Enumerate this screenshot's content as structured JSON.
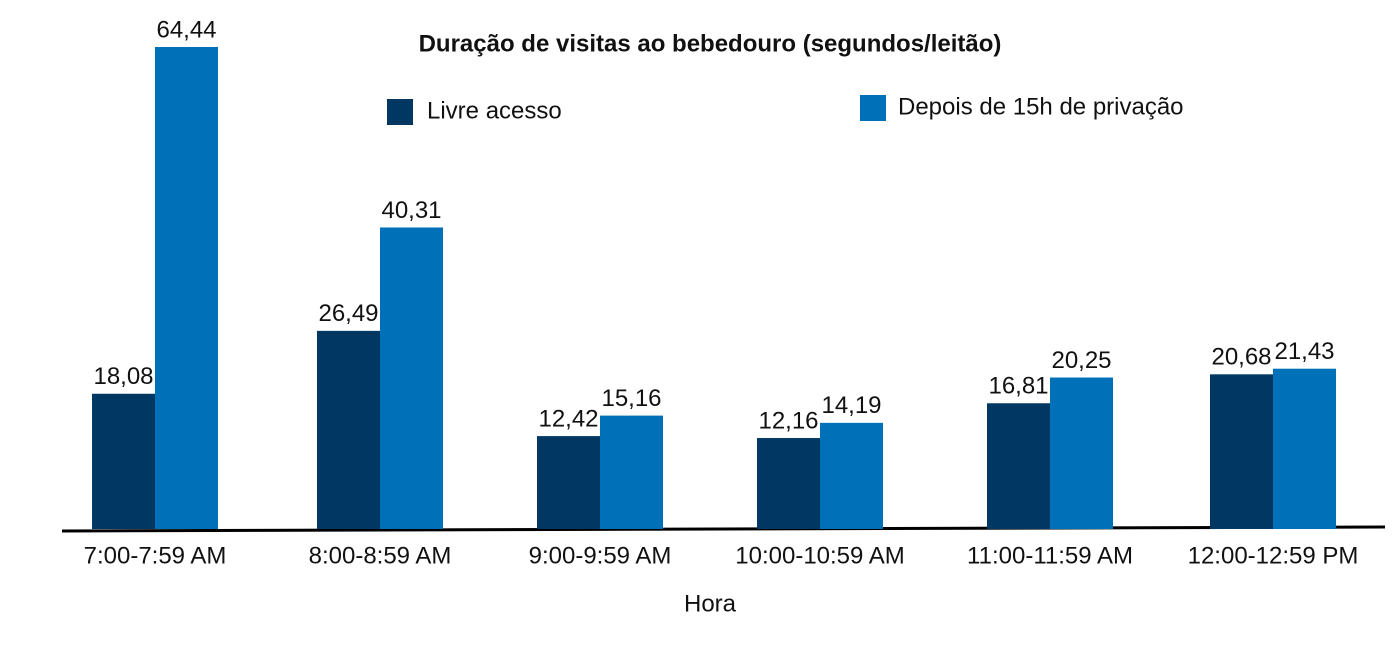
{
  "chart_data": {
    "type": "bar",
    "title": "Duração de visitas ao bebedouro (segundos/leitão)",
    "x_label": "Hora",
    "categories": [
      "7:00-7:59 AM",
      "8:00-8:59 AM",
      "9:00-9:59 AM",
      "10:00-10:59 AM",
      "11:00-11:59 AM",
      "12:00-12:59 PM"
    ],
    "series": [
      {
        "name": "Livre acesso",
        "color": "#003763",
        "values": [
          18.08,
          26.49,
          12.42,
          12.16,
          16.81,
          20.68
        ],
        "value_labels": [
          "18,08",
          "26,49",
          "12,42",
          "12,16",
          "16,81",
          "20,68"
        ]
      },
      {
        "name": "Depois de 15h de privação",
        "color": "#0070b8",
        "values": [
          64.44,
          40.31,
          15.16,
          14.19,
          20.25,
          21.43
        ],
        "value_labels": [
          "64,44",
          "40,31",
          "15,16",
          "14,19",
          "20,25",
          "21,43"
        ]
      }
    ]
  }
}
